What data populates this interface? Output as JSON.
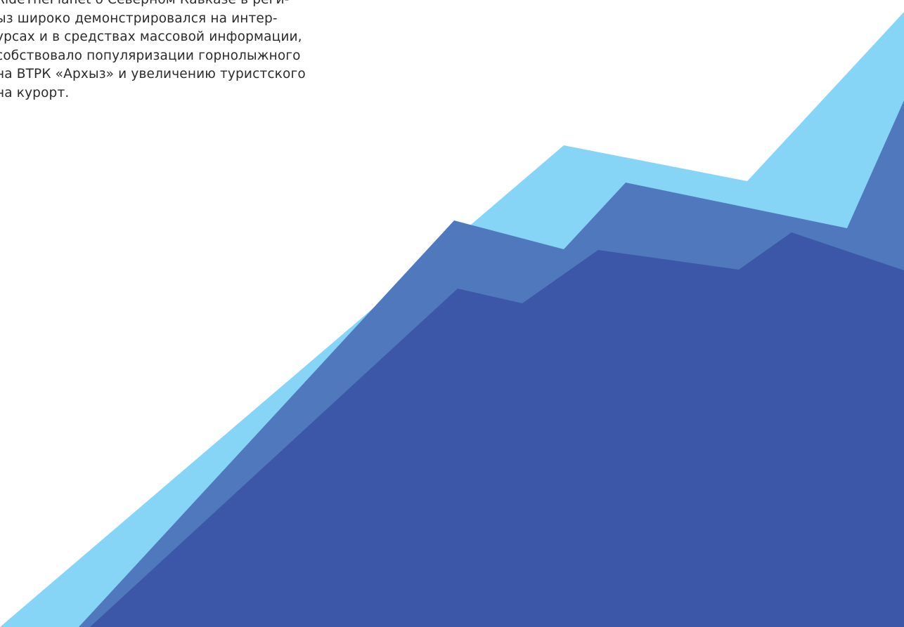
{
  "text": {
    "lines": [
      "RideThePlanet о Северном Кавказе в реги-",
      "ыз широко демонстрировался на интер-",
      "урсах и в средствах массовой информации,",
      "собствовало популяризации горнолыжного",
      "на ВТРК «Архыз» и увеличению туристского",
      "на курорт."
    ]
  },
  "colors": {
    "text": "#2b2b2b",
    "mountain_light": "#87d5f6",
    "mountain_mid": "#5079bd",
    "mountain_dark": "#3c57a7",
    "background": "#ffffff"
  }
}
